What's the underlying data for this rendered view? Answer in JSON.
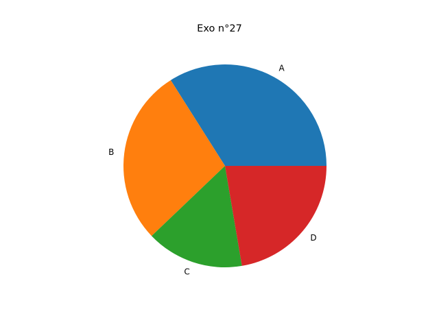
{
  "chart_data": {
    "type": "pie",
    "title": "Exo n°27",
    "categories": [
      "A",
      "B",
      "C",
      "D"
    ],
    "values": [
      35,
      29,
      16,
      23
    ],
    "colors": [
      "#1f77b4",
      "#ff7f0e",
      "#2ca02c",
      "#d62728"
    ],
    "start_angle_deg": 0,
    "direction": "counterclockwise",
    "legend": "none"
  }
}
